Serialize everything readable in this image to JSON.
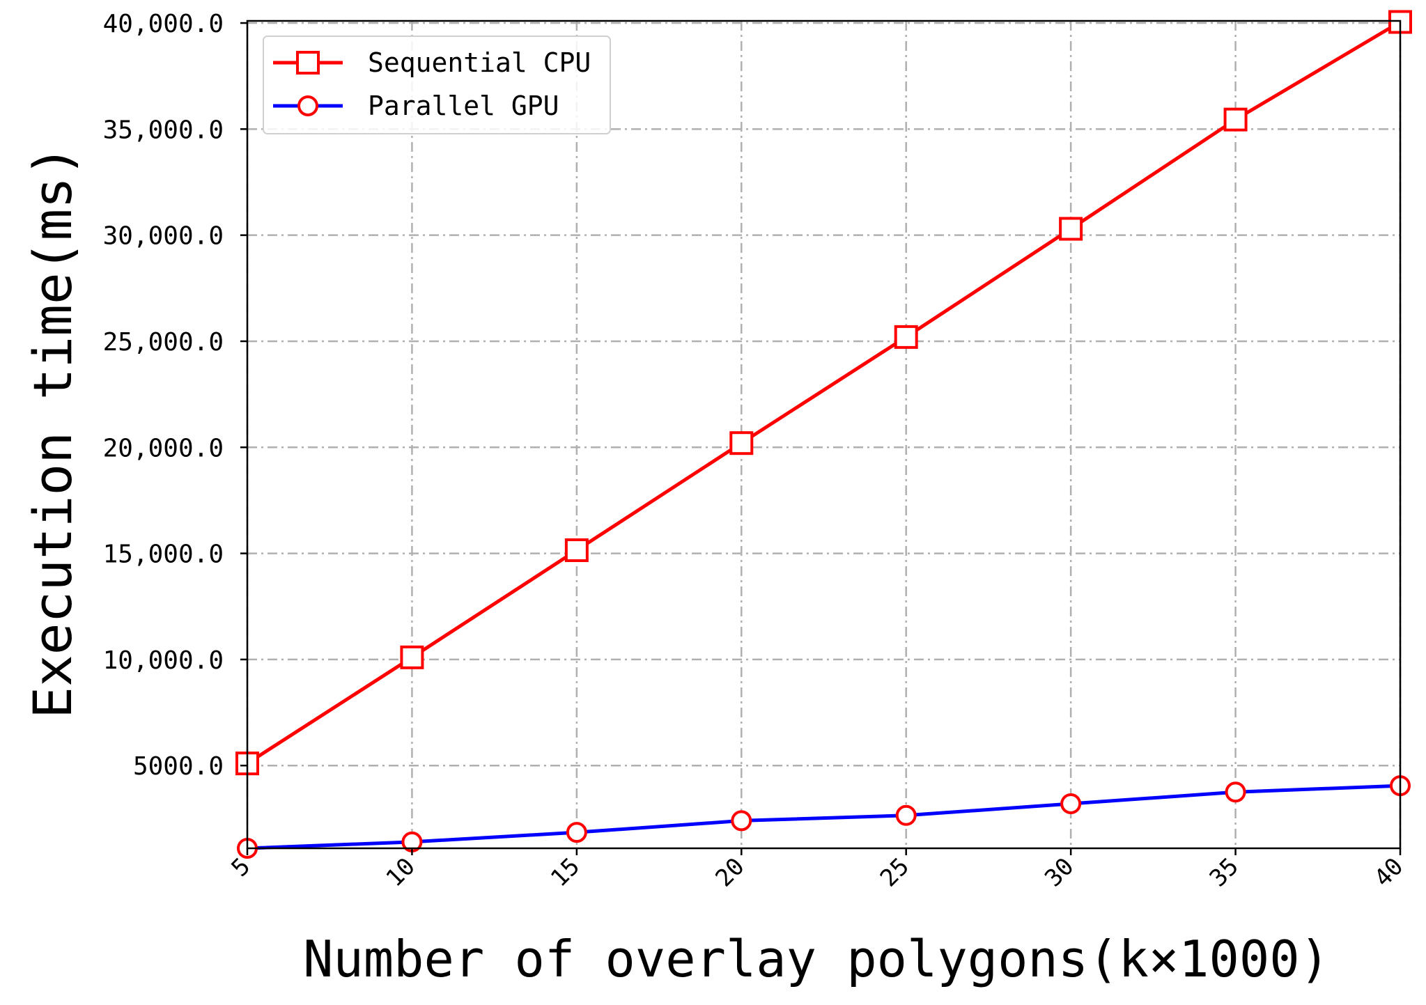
{
  "chart_data": {
    "type": "line",
    "title": "",
    "xlabel": "Number of overlay polygons(k×1000)",
    "ylabel": "Execution time(ms)",
    "x": [
      5,
      10,
      15,
      20,
      25,
      30,
      35,
      40
    ],
    "x_tick_labels": [
      "5",
      "10",
      "15",
      "20",
      "25",
      "30",
      "35",
      "40"
    ],
    "xlim": [
      5,
      40
    ],
    "ylim": [
      1100,
      40100
    ],
    "y_ticks": [
      5000,
      10000,
      15000,
      20000,
      25000,
      30000,
      35000,
      40000
    ],
    "y_tick_labels": [
      "5000.0",
      "10,000.0",
      "15,000.0",
      "20,000.0",
      "25,000.0",
      "30,000.0",
      "35,000.0",
      "40,000.0"
    ],
    "grid": true,
    "legend_position": "top-left",
    "series": [
      {
        "name": "Sequential CPU",
        "marker": "square",
        "line_color": "#ff0000",
        "marker_color": "#ff0000",
        "values": [
          5100,
          10100,
          15150,
          20200,
          25200,
          30300,
          35450,
          40050
        ]
      },
      {
        "name": "Parallel GPU",
        "marker": "circle",
        "line_color": "#0000ff",
        "marker_color": "#ff0000",
        "values": [
          1100,
          1400,
          1850,
          2400,
          2650,
          3200,
          3750,
          4050
        ]
      }
    ]
  }
}
